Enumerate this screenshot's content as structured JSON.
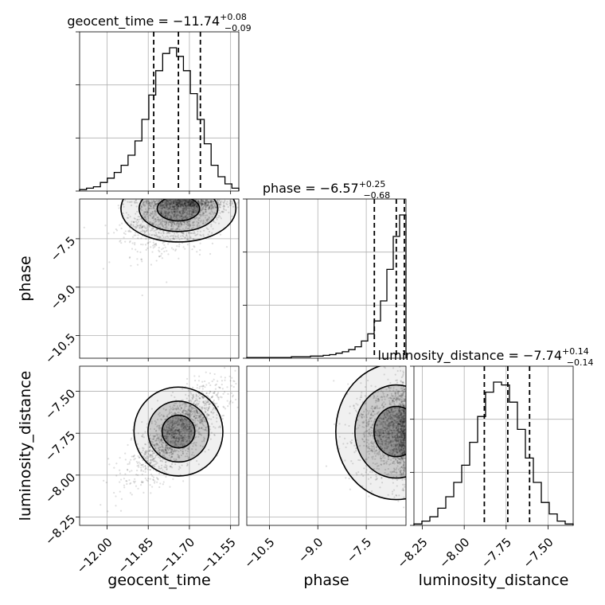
{
  "chart_data": {
    "type": "corner",
    "parameters": [
      {
        "name": "geocent_time",
        "label": "geocent_time",
        "range": [
          -12.1,
          -11.52
        ],
        "ticks": [
          -12.0,
          -11.85,
          -11.7,
          -11.55
        ],
        "tick_labels": [
          "−12.00",
          "−11.85",
          "−11.70",
          "−11.55"
        ],
        "quantiles": [
          -11.83,
          -11.74,
          -11.66
        ],
        "title": {
          "main": "geocent_time = −11.74",
          "sup": "+0.08",
          "sub": "−0.09"
        },
        "hist_counts": [
          0.01,
          0.02,
          0.03,
          0.06,
          0.09,
          0.13,
          0.18,
          0.25,
          0.35,
          0.5,
          0.67,
          0.84,
          0.96,
          1.0,
          0.94,
          0.84,
          0.68,
          0.5,
          0.33,
          0.18,
          0.1,
          0.05,
          0.02
        ]
      },
      {
        "name": "phase",
        "label": "phase",
        "range": [
          -11.2,
          -6.27
        ],
        "ticks": [
          -10.5,
          -9.0,
          -7.5
        ],
        "tick_labels": [
          "−10.5",
          "−9.0",
          "−7.5"
        ],
        "quantiles": [
          -7.25,
          -6.57,
          -6.32
        ],
        "title": {
          "main": "phase = −6.57",
          "sup": "+0.25",
          "sub": "−0.68"
        },
        "hist_counts": [
          0.005,
          0.005,
          0.005,
          0.005,
          0.005,
          0.005,
          0.005,
          0.01,
          0.01,
          0.01,
          0.015,
          0.015,
          0.02,
          0.025,
          0.035,
          0.045,
          0.06,
          0.08,
          0.12,
          0.17,
          0.26,
          0.4,
          0.62,
          0.85,
          1.0
        ]
      },
      {
        "name": "luminosity_distance",
        "label": "luminosity_distance",
        "range": [
          -8.3,
          -7.35
        ],
        "ticks": [
          -8.25,
          -8.0,
          -7.75,
          -7.5
        ],
        "tick_labels": [
          "−8.25",
          "−8.00",
          "−7.75",
          "−7.50"
        ],
        "quantiles": [
          -7.88,
          -7.74,
          -7.61
        ],
        "title": {
          "main": "luminosity_distance = −7.74",
          "sup": "+0.14",
          "sub": "−0.14"
        },
        "hist_counts": [
          0.01,
          0.03,
          0.06,
          0.12,
          0.2,
          0.3,
          0.42,
          0.58,
          0.76,
          0.93,
          1.0,
          0.98,
          0.86,
          0.67,
          0.47,
          0.3,
          0.16,
          0.08,
          0.03,
          0.01
        ]
      }
    ],
    "grid": true
  }
}
